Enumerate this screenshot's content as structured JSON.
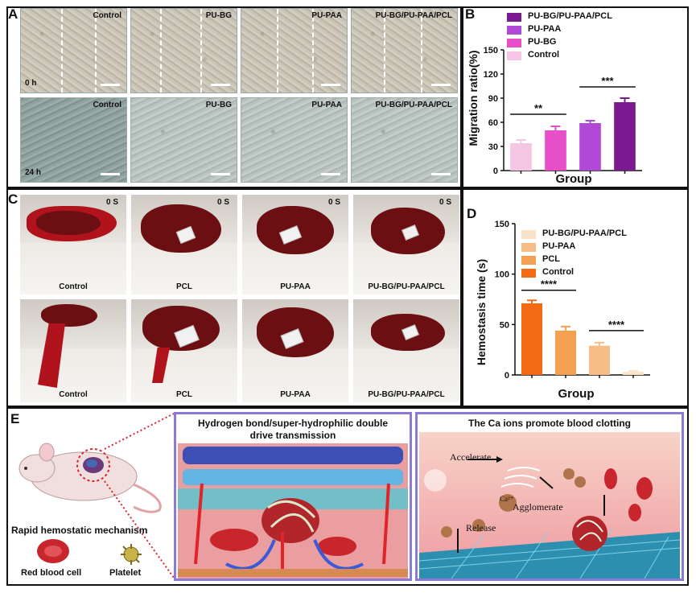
{
  "panels": {
    "A": {
      "label": "A",
      "row0_time": "0 h",
      "row1_time": "24 h",
      "groups": [
        "Control",
        "PU-BG",
        "PU-PAA",
        "PU-BG/PU-PAA/PCL"
      ]
    },
    "B": {
      "label": "B",
      "chart_data": {
        "type": "bar",
        "categories": [
          "Control",
          "PU-BG",
          "PU-PAA",
          "PU-BG/PU-PAA/PCL"
        ],
        "values": [
          34,
          50,
          59,
          85
        ],
        "errors": [
          4,
          5,
          3,
          5
        ],
        "colors": [
          "#f5c6e4",
          "#e64fc8",
          "#b04ad6",
          "#7b1a90"
        ],
        "legend": [
          "PU-BG/PU-PAA/PCL",
          "PU-PAA",
          "PU-BG",
          "Control"
        ],
        "legend_colors": [
          "#7b1a90",
          "#b04ad6",
          "#e64fc8",
          "#f5c6e4"
        ],
        "xlabel": "Group",
        "ylabel": "Migration ratio(%)",
        "ylim": [
          0,
          150
        ],
        "yticks": [
          "0",
          "30",
          "60",
          "90",
          "120",
          "150"
        ],
        "significance": [
          {
            "from": 0,
            "to": 1,
            "text": "**",
            "y": 70
          },
          {
            "from": 2,
            "to": 3,
            "text": "***",
            "y": 104
          }
        ]
      }
    },
    "C": {
      "label": "C",
      "time": "0 S",
      "groups": [
        "Control",
        "PCL",
        "PU-PAA",
        "PU-BG/PU-PAA/PCL"
      ]
    },
    "D": {
      "label": "D",
      "chart_data": {
        "type": "bar",
        "categories": [
          "Control",
          "PCL",
          "PU-PAA",
          "PU-BG/PU-PAA/PCL"
        ],
        "values": [
          71,
          44,
          29,
          3
        ],
        "errors": [
          3,
          4,
          3,
          1
        ],
        "colors": [
          "#f46a14",
          "#f4a052",
          "#f7bd86",
          "#fbe3c8"
        ],
        "legend": [
          "PU-BG/PU-PAA/PCL",
          "PU-PAA",
          "PCL",
          "Control"
        ],
        "legend_colors": [
          "#fbe3c8",
          "#f7bd86",
          "#f4a052",
          "#f46a14"
        ],
        "xlabel": "Group",
        "ylabel": "Hemostasis time (s)",
        "ylim": [
          0,
          150
        ],
        "yticks": [
          "0",
          "50",
          "100",
          "150"
        ],
        "significance": [
          {
            "from": 0,
            "to": 1,
            "text": "****",
            "y": 84
          },
          {
            "from": 2,
            "to": 3,
            "text": "****",
            "y": 44
          }
        ]
      }
    },
    "E": {
      "label": "E",
      "mechanism_title": "Rapid hemostatic mechanism",
      "rbc_label": "Red blood cell",
      "platelet_label": "Platelet",
      "box1_title": "Hydrogen bond/super-hydrophilic double drive transmission",
      "box2_title": "The Ca ions promote blood clotting",
      "box2_annotations": {
        "accelerate": "Accelerate",
        "agglomerate": "Agglomerate",
        "release": "Release",
        "ion": "Ca²⁺"
      }
    }
  },
  "colors": {
    "rbc": "#c9252c",
    "mesh": "#2c8fb0",
    "border_purple": "#8d7ad6"
  }
}
